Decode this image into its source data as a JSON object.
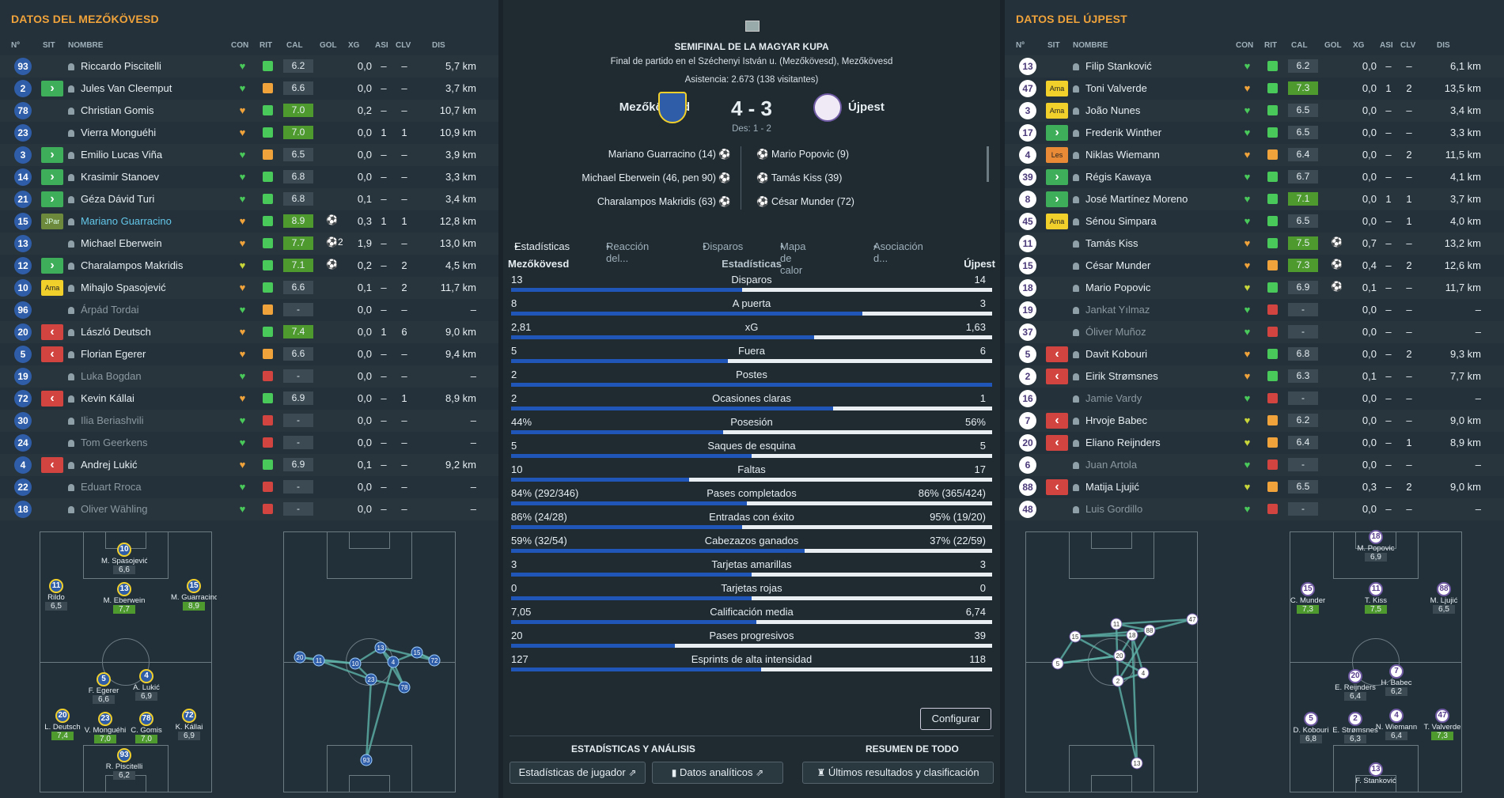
{
  "left": {
    "title": "DATOS DEL MEZŐKÖVESD",
    "cols": [
      "Nº",
      "SIT",
      "NOMBRE",
      "CON",
      "RIT",
      "CAL",
      "GOL",
      "XG",
      "ASI",
      "CLV",
      "DIS"
    ],
    "players": [
      {
        "n": "93",
        "st": "",
        "name": "Riccardo Piscitelli",
        "h": "g",
        "r": "g",
        "cal": "6.2",
        "cc": "",
        "gol": "",
        "xg": "0,0",
        "asi": "–",
        "clv": "–",
        "dis": "5,7 km"
      },
      {
        "n": "2",
        "st": "in",
        "name": "Jules Van Cleemput",
        "h": "g",
        "r": "o",
        "cal": "6.6",
        "cc": "",
        "gol": "",
        "xg": "0,0",
        "asi": "–",
        "clv": "–",
        "dis": "3,7 km"
      },
      {
        "n": "78",
        "st": "",
        "name": "Christian Gomis",
        "h": "o",
        "r": "g",
        "cal": "7.0",
        "cc": "g",
        "gol": "",
        "xg": "0,2",
        "asi": "–",
        "clv": "–",
        "dis": "10,7 km"
      },
      {
        "n": "23",
        "st": "",
        "name": "Vierra Monguéhi",
        "h": "o",
        "r": "g",
        "cal": "7.0",
        "cc": "g",
        "gol": "",
        "xg": "0,0",
        "asi": "1",
        "clv": "1",
        "dis": "10,9 km"
      },
      {
        "n": "3",
        "st": "in",
        "name": "Emilio Lucas Viña",
        "h": "g",
        "r": "o",
        "cal": "6.5",
        "cc": "",
        "gol": "",
        "xg": "0,0",
        "asi": "–",
        "clv": "–",
        "dis": "3,9 km"
      },
      {
        "n": "14",
        "st": "in",
        "name": "Krasimir Stanoev",
        "h": "g",
        "r": "g",
        "cal": "6.8",
        "cc": "",
        "gol": "",
        "xg": "0,0",
        "asi": "–",
        "clv": "–",
        "dis": "3,3 km"
      },
      {
        "n": "21",
        "st": "in",
        "name": "Géza Dávid Turi",
        "h": "g",
        "r": "g",
        "cal": "6.8",
        "cc": "",
        "gol": "",
        "xg": "0,1",
        "asi": "–",
        "clv": "–",
        "dis": "3,4 km"
      },
      {
        "n": "15",
        "st": "jp",
        "stl": "JPar",
        "name": "Mariano Guarracino",
        "hl": true,
        "h": "o",
        "r": "g",
        "cal": "8.9",
        "cc": "g",
        "gol": "⚽",
        "xg": "0,3",
        "asi": "1",
        "clv": "1",
        "dis": "12,8 km"
      },
      {
        "n": "13",
        "st": "",
        "name": "Michael Eberwein",
        "h": "o",
        "r": "g",
        "cal": "7.7",
        "cc": "g",
        "gol": "⚽2",
        "xg": "1,9",
        "asi": "–",
        "clv": "–",
        "dis": "13,0 km"
      },
      {
        "n": "12",
        "st": "in",
        "name": "Charalampos Makridis",
        "h": "y",
        "r": "g",
        "cal": "7.1",
        "cc": "g",
        "gol": "⚽",
        "xg": "0,2",
        "asi": "–",
        "clv": "2",
        "dis": "4,5 km"
      },
      {
        "n": "10",
        "st": "am",
        "stl": "Ama",
        "name": "Mihajlo Spasojević",
        "h": "o",
        "r": "g",
        "cal": "6.6",
        "cc": "",
        "gol": "",
        "xg": "0,1",
        "asi": "–",
        "clv": "2",
        "dis": "11,7 km"
      },
      {
        "n": "96",
        "st": "",
        "name": "Árpád Tordai",
        "dim": true,
        "h": "g",
        "r": "o",
        "cal": "-",
        "cc": "",
        "gol": "",
        "xg": "0,0",
        "asi": "–",
        "clv": "–",
        "dis": "–"
      },
      {
        "n": "20",
        "st": "out",
        "name": "László Deutsch",
        "h": "o",
        "r": "g",
        "cal": "7.4",
        "cc": "g",
        "gol": "",
        "xg": "0,0",
        "asi": "1",
        "clv": "6",
        "dis": "9,0 km"
      },
      {
        "n": "5",
        "st": "out",
        "name": "Florian Egerer",
        "h": "o",
        "r": "o",
        "cal": "6.6",
        "cc": "",
        "gol": "",
        "xg": "0,0",
        "asi": "–",
        "clv": "–",
        "dis": "9,4 km"
      },
      {
        "n": "19",
        "st": "",
        "name": "Luka Bogdan",
        "dim": true,
        "h": "g",
        "r": "r",
        "cal": "-",
        "cc": "",
        "gol": "",
        "xg": "0,0",
        "asi": "–",
        "clv": "–",
        "dis": "–"
      },
      {
        "n": "72",
        "st": "out",
        "name": "Kevin Kállai",
        "h": "o",
        "r": "g",
        "cal": "6.9",
        "cc": "",
        "gol": "",
        "xg": "0,0",
        "asi": "–",
        "clv": "1",
        "dis": "8,9 km"
      },
      {
        "n": "30",
        "st": "",
        "name": "Ilia Beriashvili",
        "dim": true,
        "h": "g",
        "r": "r",
        "cal": "-",
        "cc": "",
        "gol": "",
        "xg": "0,0",
        "asi": "–",
        "clv": "–",
        "dis": "–"
      },
      {
        "n": "24",
        "st": "",
        "name": "Tom Geerkens",
        "dim": true,
        "h": "g",
        "r": "r",
        "cal": "-",
        "cc": "",
        "gol": "",
        "xg": "0,0",
        "asi": "–",
        "clv": "–",
        "dis": "–"
      },
      {
        "n": "4",
        "st": "out",
        "name": "Andrej Lukić",
        "h": "o",
        "r": "g",
        "cal": "6.9",
        "cc": "",
        "gol": "",
        "xg": "0,1",
        "asi": "–",
        "clv": "–",
        "dis": "9,2 km"
      },
      {
        "n": "22",
        "st": "",
        "name": "Eduart Rroca",
        "dim": true,
        "h": "g",
        "r": "r",
        "cal": "-",
        "cc": "",
        "gol": "",
        "xg": "0,0",
        "asi": "–",
        "clv": "–",
        "dis": "–"
      },
      {
        "n": "18",
        "st": "",
        "name": "Oliver Wähling",
        "dim": true,
        "h": "g",
        "r": "r",
        "cal": "-",
        "cc": "",
        "gol": "",
        "xg": "0,0",
        "asi": "–",
        "clv": "–",
        "dis": "–"
      }
    ],
    "formation": [
      {
        "n": "10",
        "nm": "M. Spasojević",
        "rt": "6,6",
        "g": false
      },
      {
        "n": "11",
        "nm": "Rildo",
        "rt": "6,5",
        "g": false
      },
      {
        "n": "13",
        "nm": "M. Eberwein",
        "rt": "7,7",
        "g": true
      },
      {
        "n": "15",
        "nm": "M. Guarracino",
        "rt": "8,9",
        "g": true
      },
      {
        "n": "5",
        "nm": "F. Egerer",
        "rt": "6,6",
        "g": false
      },
      {
        "n": "4",
        "nm": "A. Lukić",
        "rt": "6,9",
        "g": false
      },
      {
        "n": "20",
        "nm": "L. Deutsch",
        "rt": "7,4",
        "g": true
      },
      {
        "n": "23",
        "nm": "V. Monguéhi",
        "rt": "7,0",
        "g": true
      },
      {
        "n": "78",
        "nm": "C. Gomis",
        "rt": "7,0",
        "g": true
      },
      {
        "n": "72",
        "nm": "K. Kállai",
        "rt": "6,9",
        "g": false
      },
      {
        "n": "93",
        "nm": "R. Piscitelli",
        "rt": "6,2",
        "g": false
      }
    ],
    "passnet": [
      "20",
      "11",
      "10",
      "13",
      "4",
      "15",
      "72",
      "23",
      "78",
      "93"
    ]
  },
  "right": {
    "title": "DATOS DEL ÚJPEST",
    "players": [
      {
        "n": "13",
        "st": "",
        "name": "Filip Stanković",
        "h": "g",
        "r": "g",
        "cal": "6.2",
        "cc": "",
        "gol": "",
        "xg": "0,0",
        "asi": "–",
        "clv": "–",
        "dis": "6,1 km"
      },
      {
        "n": "47",
        "st": "am",
        "stl": "Ama",
        "name": "Toni Valverde",
        "h": "o",
        "r": "g",
        "cal": "7.3",
        "cc": "g",
        "gol": "",
        "xg": "0,0",
        "asi": "1",
        "clv": "2",
        "dis": "13,5 km"
      },
      {
        "n": "3",
        "st": "am",
        "stl": "Ama",
        "name": "João Nunes",
        "h": "g",
        "r": "g",
        "cal": "6.5",
        "cc": "",
        "gol": "",
        "xg": "0,0",
        "asi": "–",
        "clv": "–",
        "dis": "3,4 km"
      },
      {
        "n": "17",
        "st": "in",
        "name": "Frederik Winther",
        "h": "g",
        "r": "g",
        "cal": "6.5",
        "cc": "",
        "gol": "",
        "xg": "0,0",
        "asi": "–",
        "clv": "–",
        "dis": "3,3 km"
      },
      {
        "n": "4",
        "st": "le",
        "stl": "Les",
        "name": "Niklas Wiemann",
        "h": "o",
        "r": "o",
        "cal": "6.4",
        "cc": "",
        "gol": "",
        "xg": "0,0",
        "asi": "–",
        "clv": "2",
        "dis": "11,5 km"
      },
      {
        "n": "39",
        "st": "in",
        "name": "Régis Kawaya",
        "h": "g",
        "r": "g",
        "cal": "6.7",
        "cc": "",
        "gol": "",
        "xg": "0,0",
        "asi": "–",
        "clv": "–",
        "dis": "4,1 km"
      },
      {
        "n": "8",
        "st": "in",
        "name": "José Martínez Moreno",
        "h": "g",
        "r": "g",
        "cal": "7.1",
        "cc": "g",
        "gol": "",
        "xg": "0,0",
        "asi": "1",
        "clv": "1",
        "dis": "3,7 km"
      },
      {
        "n": "45",
        "st": "am",
        "stl": "Ama",
        "name": "Sénou Simpara",
        "h": "g",
        "r": "g",
        "cal": "6.5",
        "cc": "",
        "gol": "",
        "xg": "0,0",
        "asi": "–",
        "clv": "1",
        "dis": "4,0 km"
      },
      {
        "n": "11",
        "st": "",
        "name": "Tamás Kiss",
        "h": "o",
        "r": "g",
        "cal": "7.5",
        "cc": "g",
        "gol": "⚽",
        "xg": "0,7",
        "asi": "–",
        "clv": "–",
        "dis": "13,2 km"
      },
      {
        "n": "15",
        "st": "",
        "name": "César Munder",
        "h": "o",
        "r": "o",
        "cal": "7.3",
        "cc": "g",
        "gol": "⚽",
        "xg": "0,4",
        "asi": "–",
        "clv": "2",
        "dis": "12,6 km"
      },
      {
        "n": "18",
        "st": "",
        "name": "Mario Popovic",
        "h": "y",
        "r": "g",
        "cal": "6.9",
        "cc": "",
        "gol": "⚽",
        "xg": "0,1",
        "asi": "–",
        "clv": "–",
        "dis": "11,7 km"
      },
      {
        "n": "19",
        "st": "",
        "name": "Jankat Yılmaz",
        "dim": true,
        "h": "g",
        "r": "r",
        "cal": "-",
        "cc": "",
        "gol": "",
        "xg": "0,0",
        "asi": "–",
        "clv": "–",
        "dis": "–"
      },
      {
        "n": "37",
        "st": "",
        "name": "Óliver Muñoz",
        "dim": true,
        "h": "g",
        "r": "r",
        "cal": "-",
        "cc": "",
        "gol": "",
        "xg": "0,0",
        "asi": "–",
        "clv": "–",
        "dis": "–"
      },
      {
        "n": "5",
        "st": "out",
        "name": "Davit Kobouri",
        "h": "o",
        "r": "g",
        "cal": "6.8",
        "cc": "",
        "gol": "",
        "xg": "0,0",
        "asi": "–",
        "clv": "2",
        "dis": "9,3 km"
      },
      {
        "n": "2",
        "st": "out",
        "name": "Eirik Strømsnes",
        "h": "o",
        "r": "g",
        "cal": "6.3",
        "cc": "",
        "gol": "",
        "xg": "0,1",
        "asi": "–",
        "clv": "–",
        "dis": "7,7 km"
      },
      {
        "n": "16",
        "st": "",
        "name": "Jamie Vardy",
        "dim": true,
        "h": "g",
        "r": "r",
        "cal": "-",
        "cc": "",
        "gol": "",
        "xg": "0,0",
        "asi": "–",
        "clv": "–",
        "dis": "–"
      },
      {
        "n": "7",
        "st": "out",
        "name": "Hrvoje Babec",
        "h": "y",
        "r": "o",
        "cal": "6.2",
        "cc": "",
        "gol": "",
        "xg": "0,0",
        "asi": "–",
        "clv": "–",
        "dis": "9,0 km"
      },
      {
        "n": "20",
        "st": "out",
        "name": "Eliano Reijnders",
        "h": "y",
        "r": "o",
        "cal": "6.4",
        "cc": "",
        "gol": "",
        "xg": "0,0",
        "asi": "–",
        "clv": "1",
        "dis": "8,9 km"
      },
      {
        "n": "6",
        "st": "",
        "name": "Juan Artola",
        "dim": true,
        "h": "g",
        "r": "r",
        "cal": "-",
        "cc": "",
        "gol": "",
        "xg": "0,0",
        "asi": "–",
        "clv": "–",
        "dis": "–"
      },
      {
        "n": "88",
        "st": "out",
        "name": "Matija Ljujić",
        "h": "y",
        "r": "o",
        "cal": "6.5",
        "cc": "",
        "gol": "",
        "xg": "0,3",
        "asi": "–",
        "clv": "2",
        "dis": "9,0 km"
      },
      {
        "n": "48",
        "st": "",
        "name": "Luis Gordillo",
        "dim": true,
        "h": "g",
        "r": "r",
        "cal": "-",
        "cc": "",
        "gol": "",
        "xg": "0,0",
        "asi": "–",
        "clv": "–",
        "dis": "–"
      }
    ],
    "formation": [
      {
        "n": "18",
        "nm": "M. Popovic",
        "rt": "6,9",
        "g": false
      },
      {
        "n": "15",
        "nm": "C. Munder",
        "rt": "7,3",
        "g": true
      },
      {
        "n": "11",
        "nm": "T. Kiss",
        "rt": "7,5",
        "g": true
      },
      {
        "n": "88",
        "nm": "M. Ljujić",
        "rt": "6,5",
        "g": false
      },
      {
        "n": "20",
        "nm": "E. Reijnders",
        "rt": "6,4",
        "g": false
      },
      {
        "n": "7",
        "nm": "H. Babec",
        "rt": "6,2",
        "g": false
      },
      {
        "n": "5",
        "nm": "D. Kobouri",
        "rt": "6,8",
        "g": false
      },
      {
        "n": "2",
        "nm": "E. Strømsnes",
        "rt": "6,3",
        "g": false
      },
      {
        "n": "4",
        "nm": "N. Wiemann",
        "rt": "6,4",
        "g": false
      },
      {
        "n": "47",
        "nm": "T. Valverde",
        "rt": "7,3",
        "g": true
      },
      {
        "n": "13",
        "nm": "F. Stanković",
        "rt": "",
        "g": false
      }
    ],
    "passnet": [
      "47",
      "11",
      "88",
      "15",
      "18",
      "20",
      "5",
      "2",
      "4",
      "13"
    ]
  },
  "match": {
    "competition": "SEMIFINAL DE LA MAGYAR KUPA",
    "venue": "Final de partido en el Széchenyi István u. (Mezőkövesd), Mezőkövesd",
    "attendance": "Asistencia: 2.673 (138 visitantes)",
    "home": "Mezőkövesd",
    "away": "Újpest",
    "score": "4 - 3",
    "ht": "Des: 1 - 2",
    "home_scorers": [
      "Mariano Guarracino (14)",
      "Michael Eberwein (46, pen 90)",
      "Charalampos Makridis (63)"
    ],
    "away_scorers": [
      "Mario Popovic (9)",
      "Tamás Kiss (39)",
      "César Munder (72)"
    ]
  },
  "tabs": [
    "Estadísticas",
    "Reacción del...",
    "Disparos",
    "Mapa de calor",
    "Asociación d..."
  ],
  "stats_header": {
    "home": "Mezőkövesd",
    "mid": "Estadísticas",
    "away": "Újpest"
  },
  "stats": [
    {
      "l": "13",
      "label": "Disparos",
      "r": "14",
      "p": 0.48
    },
    {
      "l": "8",
      "label": "A puerta",
      "r": "3",
      "p": 0.73
    },
    {
      "l": "2,81",
      "label": "xG",
      "r": "1,63",
      "p": 0.63
    },
    {
      "l": "5",
      "label": "Fuera",
      "r": "6",
      "p": 0.45
    },
    {
      "l": "2",
      "label": "Postes",
      "r": "",
      "p": 1.0
    },
    {
      "l": "2",
      "label": "Ocasiones claras",
      "r": "1",
      "p": 0.67
    },
    {
      "l": "44%",
      "label": "Posesión",
      "r": "56%",
      "p": 0.44
    },
    {
      "l": "5",
      "label": "Saques de esquina",
      "r": "5",
      "p": 0.5
    },
    {
      "l": "10",
      "label": "Faltas",
      "r": "17",
      "p": 0.37
    },
    {
      "l": "84% (292/346)",
      "label": "Pases completados",
      "r": "86% (365/424)",
      "p": 0.49
    },
    {
      "l": "86% (24/28)",
      "label": "Entradas con éxito",
      "r": "95% (19/20)",
      "p": 0.48
    },
    {
      "l": "59% (32/54)",
      "label": "Cabezazos ganados",
      "r": "37% (22/59)",
      "p": 0.61
    },
    {
      "l": "3",
      "label": "Tarjetas amarillas",
      "r": "3",
      "p": 0.5
    },
    {
      "l": "0",
      "label": "Tarjetas rojas",
      "r": "0",
      "p": 0.5
    },
    {
      "l": "7,05",
      "label": "Calificación media",
      "r": "6,74",
      "p": 0.51
    },
    {
      "l": "20",
      "label": "Pases progresivos",
      "r": "39",
      "p": 0.34
    },
    {
      "l": "127",
      "label": "Esprints de alta intensidad",
      "r": "118",
      "p": 0.52
    }
  ],
  "configure": "Configurar",
  "sections": {
    "analysis": "ESTADÍSTICAS Y ANÁLISIS",
    "summary": "RESUMEN DE TODO"
  },
  "buttons": {
    "player_stats": "Estadísticas de jugador",
    "analytics": "Datos analíticos",
    "results": "Últimos resultados y clasificación"
  },
  "colors": {
    "accent": "#f0a33a",
    "home": "#2f5da8",
    "bar": "#1f56b8",
    "good": "#4f9a2f"
  }
}
